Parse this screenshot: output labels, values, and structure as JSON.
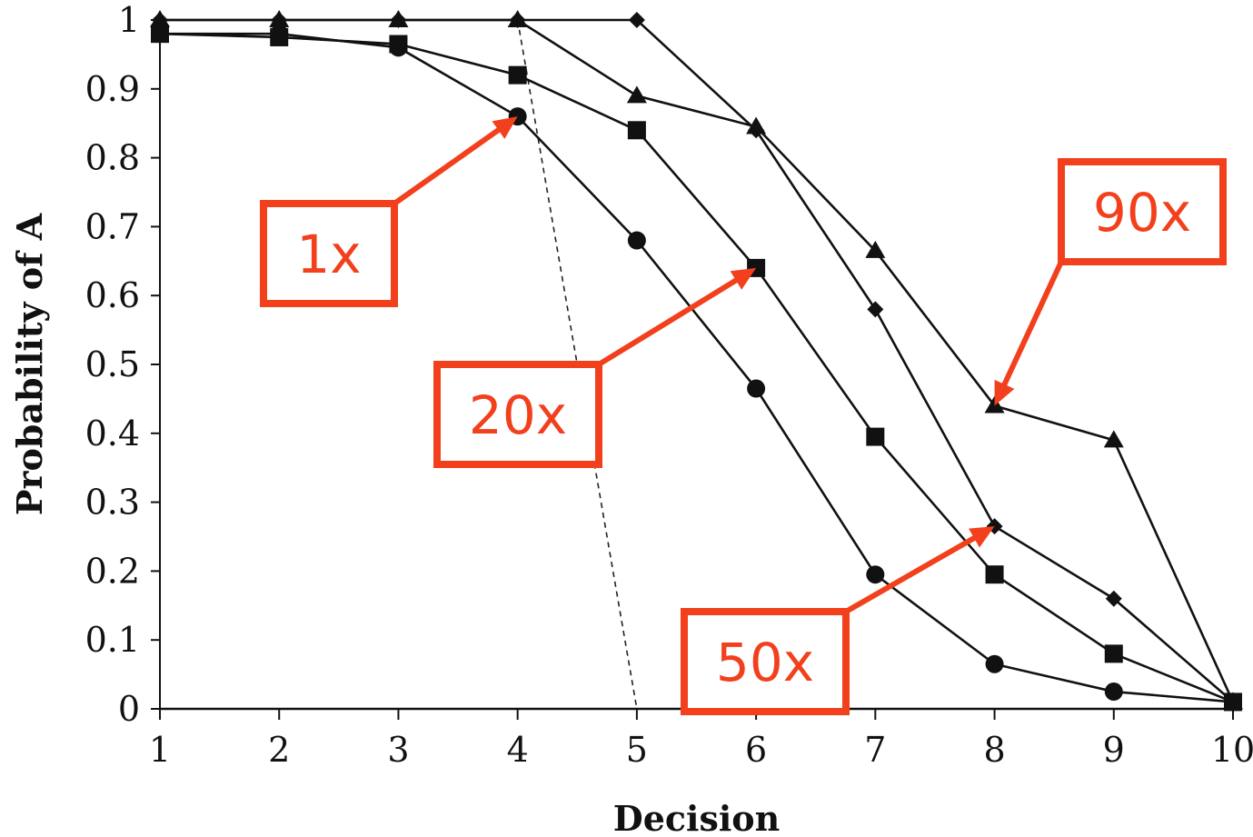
{
  "chart_data": {
    "type": "line",
    "title": "",
    "xlabel": "Decision",
    "ylabel": "Probability of A",
    "xlim": [
      1,
      10
    ],
    "ylim": [
      0,
      1
    ],
    "x_ticks": [
      1,
      2,
      3,
      4,
      5,
      6,
      7,
      8,
      9,
      10
    ],
    "y_ticks": [
      "0",
      "0.1",
      "0.2",
      "0.3",
      "0.4",
      "0.5",
      "0.6",
      "0.7",
      "0.8",
      "0.9",
      "1"
    ],
    "grid": false,
    "legend": "none",
    "x": [
      1,
      2,
      3,
      4,
      5,
      6,
      7,
      8,
      9,
      10
    ],
    "series": [
      {
        "marker": "circle",
        "values": [
          0.98,
          0.98,
          0.96,
          0.86,
          0.68,
          0.465,
          0.195,
          0.065,
          0.025,
          0.01
        ]
      },
      {
        "marker": "square",
        "values": [
          0.98,
          0.975,
          0.965,
          0.92,
          0.84,
          0.64,
          0.395,
          0.195,
          0.08,
          0.01
        ]
      },
      {
        "marker": "diamond",
        "values": [
          1.0,
          1.0,
          1.0,
          1.0,
          1.0,
          0.84,
          0.58,
          0.265,
          0.16,
          0.01
        ]
      },
      {
        "marker": "triangle",
        "values": [
          1.0,
          1.0,
          1.0,
          1.0,
          0.89,
          0.845,
          0.665,
          0.44,
          0.39,
          0.01
        ]
      }
    ],
    "reference_line": {
      "x": [
        4,
        5
      ],
      "y": [
        1.0,
        0.0
      ],
      "style": "dashed"
    },
    "annotations": [
      {
        "label": "1x",
        "target_x": 4,
        "target_y": 0.86,
        "color": "#f2401d"
      },
      {
        "label": "20x",
        "target_x": 6,
        "target_y": 0.64,
        "color": "#f2401d"
      },
      {
        "label": "50x",
        "target_x": 8,
        "target_y": 0.265,
        "color": "#f2401d"
      },
      {
        "label": "90x",
        "target_x": 8,
        "target_y": 0.44,
        "color": "#f2401d"
      }
    ]
  }
}
